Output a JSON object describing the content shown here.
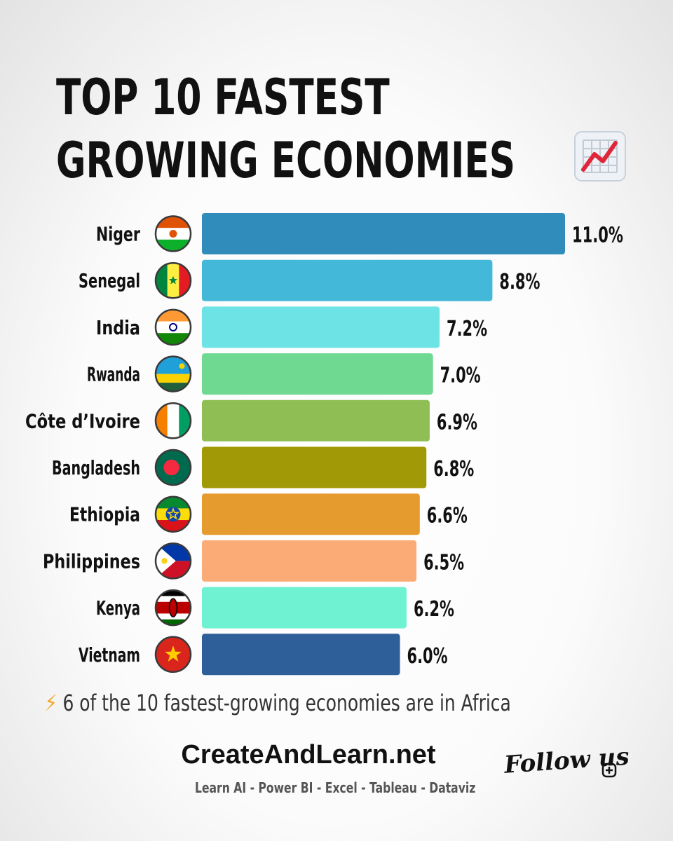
{
  "title": {
    "line1": "TOP 10 FASTEST",
    "line2": "GROWING ECONOMIES",
    "icon": "chart-increasing-icon"
  },
  "chart_data": {
    "type": "bar",
    "orientation": "horizontal",
    "categories": [
      "Niger",
      "Senegal",
      "India",
      "Rwanda",
      "Côte d’Ivoire",
      "Bangladesh",
      "Ethiopia",
      "Philippines",
      "Kenya",
      "Vietnam"
    ],
    "values": [
      11.0,
      8.8,
      7.2,
      7.0,
      6.9,
      6.8,
      6.6,
      6.5,
      6.2,
      6.0
    ],
    "value_labels": [
      "11.0%",
      "8.8%",
      "7.2%",
      "7.0%",
      "6.9%",
      "6.8%",
      "6.6%",
      "6.5%",
      "6.2%",
      "6.0%"
    ],
    "bar_colors": [
      "#2f8cbb",
      "#43b8d9",
      "#6ee3e6",
      "#6fd891",
      "#8fbe54",
      "#a19a06",
      "#e69b2e",
      "#fbab76",
      "#6ff2d2",
      "#2f5f98"
    ],
    "flags": [
      "flag-niger-icon",
      "flag-senegal-icon",
      "flag-india-icon",
      "flag-rwanda-icon",
      "flag-cote-divoire-icon",
      "flag-bangladesh-icon",
      "flag-ethiopia-icon",
      "flag-philippines-icon",
      "flag-kenya-icon",
      "flag-vietnam-icon"
    ],
    "xlim": [
      0,
      11.0
    ],
    "grid": false,
    "legend": "none"
  },
  "footnote": {
    "icon": "lightning-icon",
    "text": "6 of the 10 fastest-growing economies are in Africa"
  },
  "brand": {
    "name": "CreateAndLearn.net",
    "tagline": "Learn AI - Power BI - Excel - Tableau - Dataviz",
    "follow": "Follow us",
    "follow_icon": "plus-box-icon"
  }
}
